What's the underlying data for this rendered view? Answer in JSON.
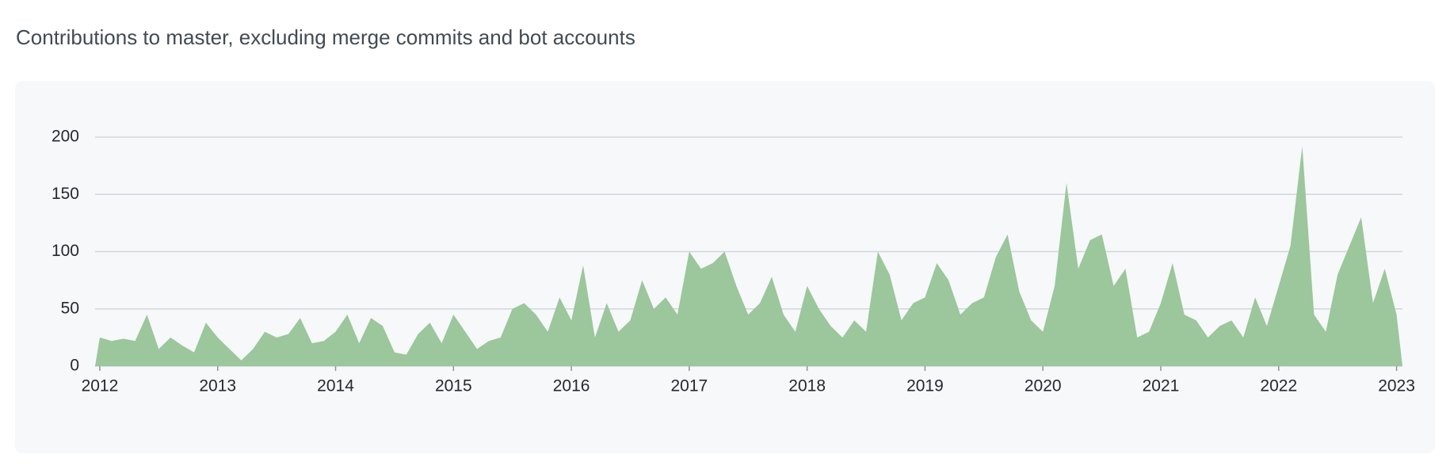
{
  "chart_data": {
    "type": "area",
    "title": "Contributions to master, excluding merge commits and bot accounts",
    "x": [
      2011.96,
      2012,
      2012.1,
      2012.2,
      2012.3,
      2012.4,
      2012.5,
      2012.6,
      2012.7,
      2012.8,
      2012.9,
      2013,
      2013.1,
      2013.2,
      2013.3,
      2013.4,
      2013.5,
      2013.6,
      2013.7,
      2013.8,
      2013.9,
      2014,
      2014.1,
      2014.2,
      2014.3,
      2014.4,
      2014.5,
      2014.6,
      2014.7,
      2014.8,
      2014.9,
      2015,
      2015.1,
      2015.2,
      2015.3,
      2015.4,
      2015.5,
      2015.6,
      2015.7,
      2015.8,
      2015.9,
      2016,
      2016.1,
      2016.2,
      2016.3,
      2016.4,
      2016.5,
      2016.6,
      2016.7,
      2016.8,
      2016.9,
      2017,
      2017.1,
      2017.2,
      2017.3,
      2017.4,
      2017.5,
      2017.6,
      2017.7,
      2017.8,
      2017.9,
      2018,
      2018.1,
      2018.2,
      2018.3,
      2018.4,
      2018.5,
      2018.6,
      2018.7,
      2018.8,
      2018.9,
      2019,
      2019.1,
      2019.2,
      2019.3,
      2019.4,
      2019.5,
      2019.6,
      2019.7,
      2019.8,
      2019.9,
      2020,
      2020.1,
      2020.2,
      2020.3,
      2020.4,
      2020.5,
      2020.6,
      2020.7,
      2020.8,
      2020.9,
      2021,
      2021.1,
      2021.2,
      2021.3,
      2021.4,
      2021.5,
      2021.6,
      2021.7,
      2021.8,
      2021.9,
      2022,
      2022.1,
      2022.2,
      2022.3,
      2022.4,
      2022.5,
      2022.6,
      2022.7,
      2022.8,
      2022.9,
      2023,
      2023.05
    ],
    "values": [
      0,
      25,
      22,
      24,
      22,
      45,
      15,
      25,
      18,
      12,
      38,
      25,
      15,
      5,
      15,
      30,
      25,
      28,
      42,
      20,
      22,
      30,
      45,
      20,
      42,
      35,
      12,
      10,
      28,
      38,
      20,
      45,
      30,
      15,
      22,
      25,
      50,
      55,
      45,
      30,
      60,
      40,
      88,
      25,
      55,
      30,
      40,
      75,
      50,
      60,
      45,
      100,
      85,
      90,
      100,
      70,
      45,
      55,
      78,
      45,
      30,
      70,
      50,
      35,
      25,
      40,
      30,
      100,
      80,
      40,
      55,
      60,
      90,
      75,
      45,
      55,
      60,
      95,
      115,
      65,
      40,
      30,
      70,
      160,
      85,
      110,
      115,
      70,
      85,
      25,
      30,
      55,
      90,
      45,
      40,
      25,
      35,
      40,
      25,
      60,
      35,
      70,
      105,
      192,
      45,
      30,
      80,
      105,
      130,
      55,
      85,
      45,
      0
    ],
    "color": "#9cc69b",
    "xlim": [
      2011.96,
      2023.05
    ],
    "xticks": [
      2012,
      2013,
      2014,
      2015,
      2016,
      2017,
      2018,
      2019,
      2020,
      2021,
      2022,
      2023
    ],
    "ylim": [
      0,
      200
    ],
    "yticks": [
      0,
      50,
      100,
      150,
      200
    ],
    "grid": true
  }
}
